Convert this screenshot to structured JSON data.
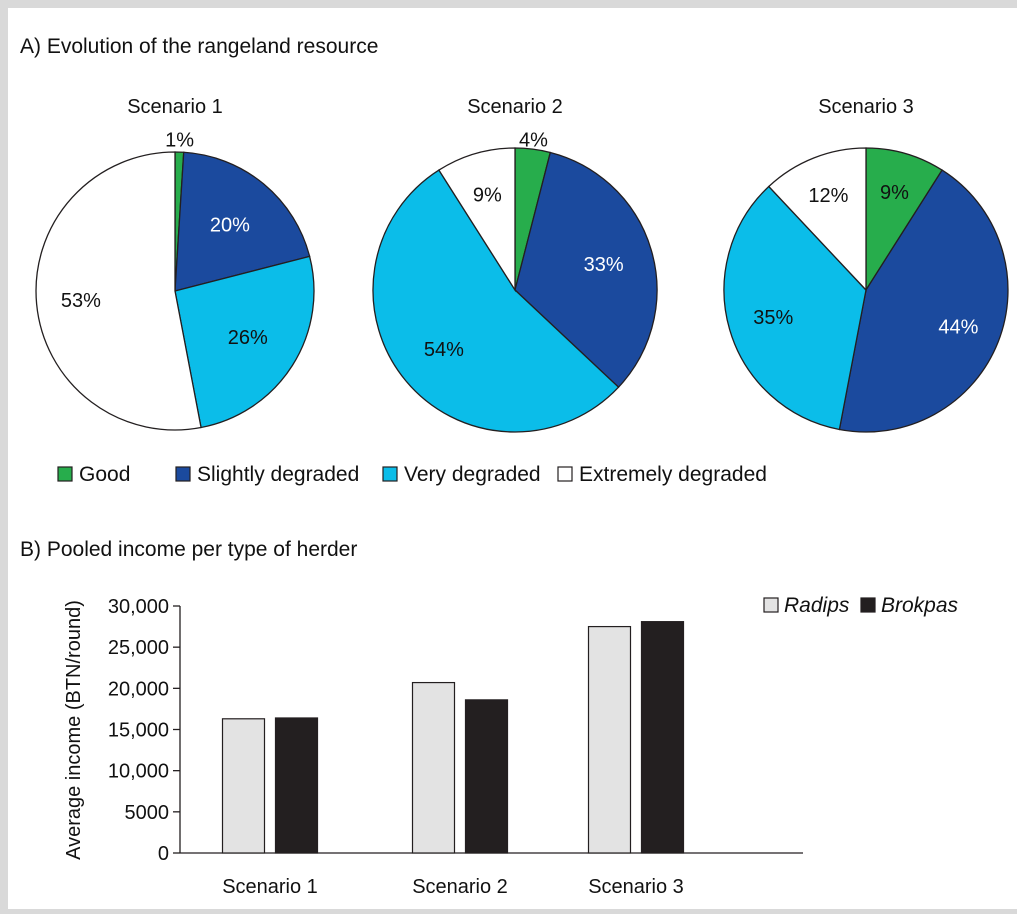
{
  "colors": {
    "good": "#27ad4c",
    "slightly": "#1b4a9e",
    "very": "#0bbde9",
    "extremely": "#ffffff",
    "radips": "#e3e3e3",
    "brokpas": "#231f20"
  },
  "panel_a": {
    "title": "A) Evolution of the rangeland resource",
    "legend": [
      {
        "label": "Good",
        "color": "#27ad4c"
      },
      {
        "label": "Slightly degraded",
        "color": "#1b4a9e"
      },
      {
        "label": "Very degraded",
        "color": "#0bbde9"
      },
      {
        "label": "Extremely degraded",
        "color": "#ffffff"
      }
    ]
  },
  "panel_b": {
    "title": "B) Pooled income per type of herder",
    "legend": [
      {
        "label": "Radips",
        "color": "#e3e3e3"
      },
      {
        "label": "Brokpas",
        "color": "#231f20"
      }
    ]
  },
  "chart_data": [
    {
      "type": "pie",
      "title": "Scenario 1",
      "labels": [
        "Good",
        "Slightly degraded",
        "Very degraded",
        "Extremely degraded"
      ],
      "values": [
        1,
        20,
        26,
        53
      ],
      "data_labels": [
        "1%",
        "20%",
        "26%",
        "53%"
      ]
    },
    {
      "type": "pie",
      "title": "Scenario 2",
      "labels": [
        "Good",
        "Slightly degraded",
        "Very degraded",
        "Extremely degraded"
      ],
      "values": [
        4,
        33,
        54,
        9
      ],
      "data_labels": [
        "4%",
        "33%",
        "54%",
        "9%"
      ]
    },
    {
      "type": "pie",
      "title": "Scenario 3",
      "labels": [
        "Good",
        "Slightly degraded",
        "Very degraded",
        "Extremely degraded"
      ],
      "values": [
        9,
        44,
        35,
        12
      ],
      "data_labels": [
        "9%",
        "44%",
        "35%",
        "12%"
      ]
    },
    {
      "type": "bar",
      "categories": [
        "Scenario 1",
        "Scenario 2",
        "Scenario 3"
      ],
      "series": [
        {
          "name": "Radips",
          "values": [
            16300,
            20700,
            27500
          ]
        },
        {
          "name": "Brokpas",
          "values": [
            16400,
            18600,
            28100
          ]
        }
      ],
      "ylabel": "Average income (BTN/round)",
      "ylim": [
        0,
        30000
      ],
      "yticks": [
        0,
        5000,
        10000,
        15000,
        20000,
        25000,
        30000
      ],
      "ytick_labels": [
        "0",
        "5000",
        "10,000",
        "15,000",
        "20,000",
        "25,000",
        "30,000"
      ],
      "grid": false,
      "legend_position": "top-right"
    }
  ]
}
